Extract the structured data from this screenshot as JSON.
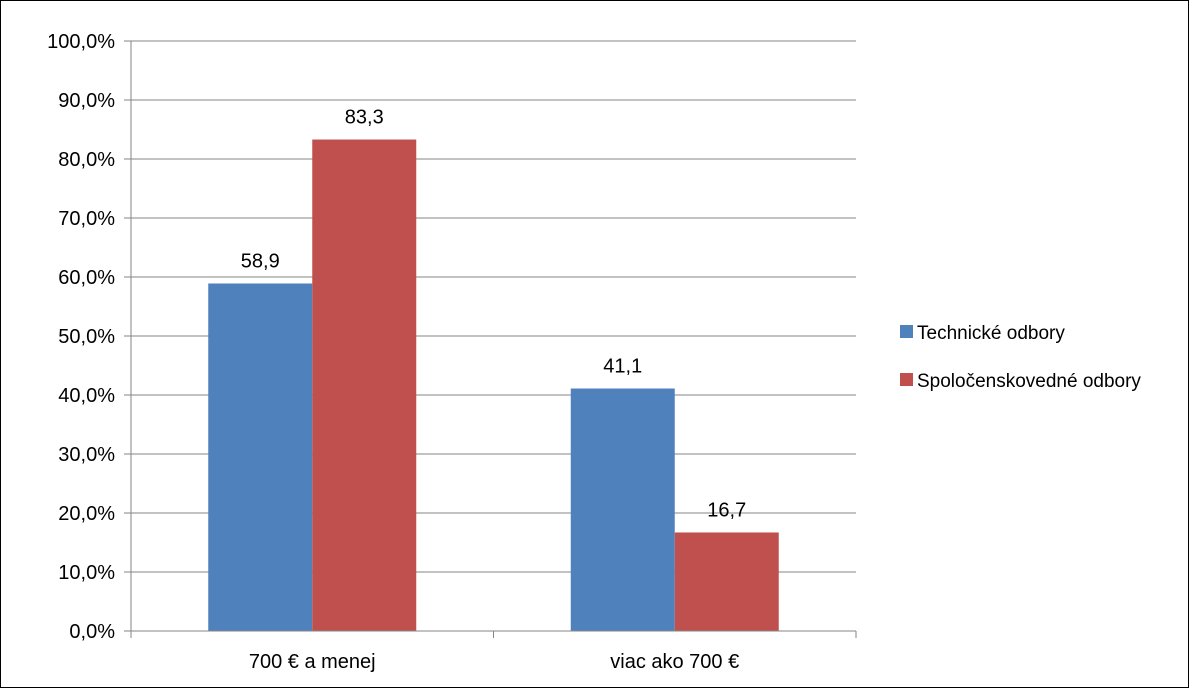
{
  "chart_data": {
    "type": "bar",
    "categories": [
      "700 € a menej",
      "viac ako 700 €"
    ],
    "series": [
      {
        "name": "Technické odbory",
        "values": [
          58.9,
          41.1
        ],
        "labels": [
          "58,9",
          "41,1"
        ],
        "color": "#4F81BD"
      },
      {
        "name": "Spoločenskovedné odbory",
        "values": [
          83.3,
          16.7
        ],
        "labels": [
          "83,3",
          "16,7"
        ],
        "color": "#C0504D"
      }
    ],
    "y_ticks": [
      "0,0%",
      "10,0%",
      "20,0%",
      "30,0%",
      "40,0%",
      "50,0%",
      "60,0%",
      "70,0%",
      "80,0%",
      "90,0%",
      "100,0%"
    ],
    "ylim": [
      0,
      100
    ],
    "y_step": 10,
    "grid": true,
    "legend_position": "right",
    "gridline_color": "#868686",
    "axis_color": "#868686"
  }
}
